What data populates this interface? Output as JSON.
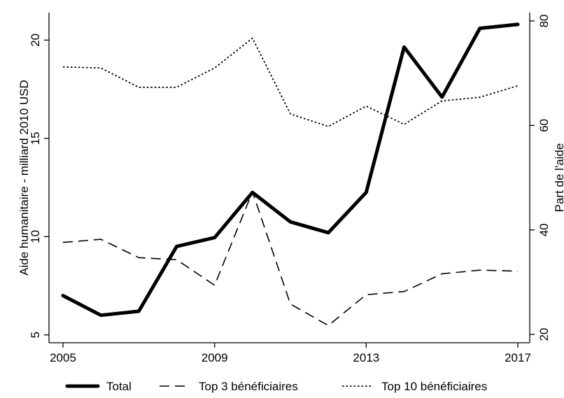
{
  "chart_data": {
    "type": "line",
    "title": "",
    "xlabel": "",
    "ylabel": "Aide humanitaire - milliard 2010 USD",
    "y2label": "Part de l'aide",
    "x": [
      2005,
      2006,
      2007,
      2008,
      2009,
      2010,
      2011,
      2012,
      2013,
      2014,
      2015,
      2016,
      2017
    ],
    "xticks": [
      "2005",
      "2009",
      "2013",
      "2017"
    ],
    "xlim": [
      2005,
      2017
    ],
    "ylim": [
      4.6,
      21.4
    ],
    "yticks": [
      "5",
      "10",
      "15",
      "20"
    ],
    "y2lim": [
      18.4,
      81.6
    ],
    "y2ticks": [
      "20",
      "40",
      "60",
      "80"
    ],
    "grid": false,
    "legend_position": "bottom",
    "series": [
      {
        "name": "Total",
        "axis": "left",
        "style": "solid-thick",
        "color": "#000000",
        "values": [
          7.0,
          6.0,
          6.2,
          9.5,
          9.95,
          12.25,
          10.75,
          10.2,
          12.25,
          19.65,
          17.1,
          20.6,
          20.8
        ]
      },
      {
        "name": "Top 3 bénéficiaires",
        "axis": "right",
        "style": "dashed",
        "color": "#000000",
        "values": [
          37.6,
          38.2,
          34.7,
          34.3,
          29.4,
          47.3,
          25.8,
          21.7,
          27.6,
          28.2,
          31.6,
          32.3,
          32.1
        ]
      },
      {
        "name": "Top 10 bénéficiaires",
        "axis": "right",
        "style": "dotted",
        "color": "#000000",
        "values": [
          71.2,
          71.0,
          67.3,
          67.3,
          71.0,
          76.7,
          62.2,
          59.8,
          63.7,
          60.2,
          64.7,
          65.4,
          67.6
        ]
      }
    ]
  }
}
